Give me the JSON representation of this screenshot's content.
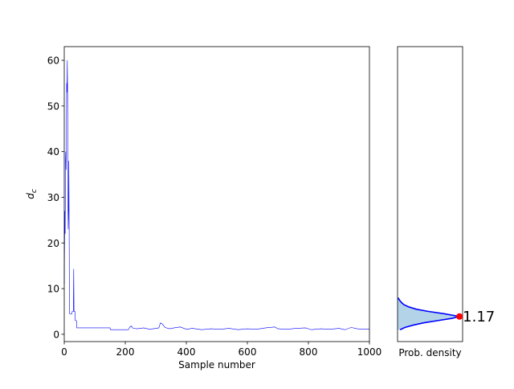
{
  "chart_data": [
    {
      "type": "line",
      "xlabel": "Sample number",
      "ylabel": {
        "main": "d",
        "sub": "c"
      },
      "series": [
        {
          "color": "#0000ff",
          "x": [
            0,
            1,
            2,
            3,
            4,
            5,
            6,
            7,
            8,
            9,
            10,
            11,
            12,
            13,
            14,
            15,
            16,
            17,
            18,
            25,
            26,
            30,
            31,
            32,
            35,
            36,
            40,
            41,
            150,
            151,
            210,
            215,
            220,
            225,
            240,
            260,
            280,
            300,
            310,
            315,
            322,
            330,
            345,
            360,
            380,
            400,
            420,
            450,
            480,
            510,
            540,
            570,
            600,
            630,
            660,
            690,
            700,
            730,
            760,
            790,
            810,
            840,
            870,
            900,
            920,
            940,
            960,
            980,
            1000
          ],
          "values": [
            11,
            20,
            27,
            22,
            38,
            40,
            36,
            45,
            55,
            53,
            60,
            52,
            30,
            23,
            27,
            38,
            24,
            5,
            4.5,
            4.5,
            5,
            5,
            14.3,
            5,
            5,
            3,
            3,
            1.4,
            1.4,
            1.0,
            1.0,
            1.6,
            1.8,
            1.3,
            1.2,
            1.4,
            1.1,
            1.3,
            1.4,
            2.5,
            2.2,
            1.5,
            1.2,
            1.4,
            1.6,
            1.1,
            1.3,
            1.0,
            1.2,
            1.1,
            1.3,
            1.0,
            1.2,
            1.1,
            1.4,
            1.6,
            1.2,
            1.1,
            1.3,
            1.4,
            1.0,
            1.2,
            1.1,
            1.3,
            1.0,
            1.5,
            1.2,
            1.1,
            1.1
          ]
        }
      ],
      "xlim": [
        0,
        1000
      ],
      "xticks": [
        0,
        200,
        400,
        600,
        800,
        1000
      ],
      "ylim": [
        -1.6,
        63
      ],
      "yticks": [
        0,
        10,
        20,
        30,
        40,
        50,
        60
      ]
    },
    {
      "type": "density",
      "xlabel": "Prob. density",
      "line_color": "#0000ff",
      "fill_color": "#b3d4e8",
      "x": [
        1.0,
        1.5,
        2.0,
        2.5,
        3.0,
        3.5,
        3.9,
        4.5,
        5.0,
        5.5,
        6.0,
        6.5,
        7.0,
        7.5,
        8.0
      ],
      "values": [
        0.04,
        0.12,
        0.25,
        0.42,
        0.65,
        0.88,
        1.0,
        0.75,
        0.5,
        0.3,
        0.18,
        0.1,
        0.06,
        0.03,
        0.01
      ],
      "xlim": [
        0,
        1.05
      ],
      "ylim": [
        -1.6,
        63
      ],
      "marker": {
        "y": 3.9,
        "density": 1.0,
        "color": "#ff0000"
      },
      "annotation": "1.17"
    }
  ]
}
